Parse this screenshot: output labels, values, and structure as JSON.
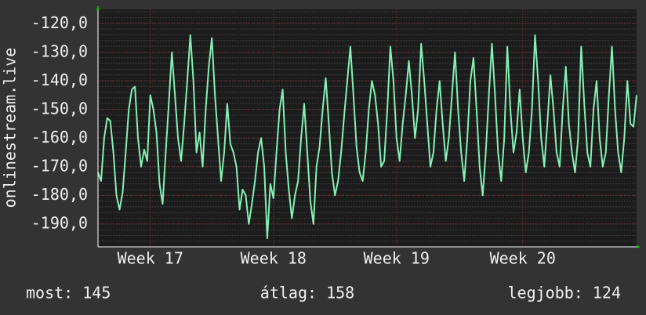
{
  "chart_data": {
    "type": "line",
    "ylabel": "onlinestream.live",
    "series": [
      {
        "name": "onlinestream.live",
        "color": "#86f0b4",
        "values": [
          -172,
          -175,
          -160,
          -153,
          -154,
          -165,
          -180,
          -185,
          -179,
          -165,
          -150,
          -143,
          -142,
          -160,
          -170,
          -164,
          -168,
          -145,
          -150,
          -158,
          -176,
          -183,
          -165,
          -148,
          -130,
          -145,
          -160,
          -168,
          -155,
          -140,
          -124,
          -140,
          -165,
          -158,
          -170,
          -150,
          -135,
          -125,
          -145,
          -160,
          -175,
          -165,
          -148,
          -162,
          -165,
          -170,
          -185,
          -178,
          -180,
          -190,
          -183,
          -175,
          -165,
          -160,
          -170,
          -195,
          -176,
          -181,
          -165,
          -150,
          -143,
          -165,
          -178,
          -188,
          -180,
          -175,
          -160,
          -148,
          -165,
          -182,
          -190,
          -170,
          -163,
          -150,
          -139,
          -155,
          -172,
          -180,
          -175,
          -165,
          -152,
          -140,
          -128,
          -145,
          -163,
          -172,
          -175,
          -165,
          -150,
          -140,
          -145,
          -155,
          -170,
          -168,
          -150,
          -128,
          -140,
          -160,
          -168,
          -155,
          -145,
          -133,
          -145,
          -160,
          -150,
          -127,
          -140,
          -155,
          -170,
          -165,
          -150,
          -140,
          -155,
          -168,
          -160,
          -145,
          -130,
          -150,
          -165,
          -175,
          -160,
          -140,
          -132,
          -150,
          -170,
          -180,
          -165,
          -145,
          -127,
          -145,
          -165,
          -175,
          -160,
          -128,
          -150,
          -165,
          -158,
          -143,
          -160,
          -172,
          -165,
          -150,
          -124,
          -140,
          -160,
          -170,
          -155,
          -138,
          -150,
          -165,
          -170,
          -150,
          -135,
          -155,
          -165,
          -172,
          -160,
          -128,
          -148,
          -165,
          -170,
          -150,
          -140,
          -160,
          -170,
          -165,
          -145,
          -128,
          -150,
          -165,
          -172,
          -160,
          -140,
          -155,
          -156,
          -145
        ]
      }
    ],
    "xlim": [
      0,
      175
    ],
    "xticks": [
      {
        "value": 17,
        "label": "Week 17"
      },
      {
        "value": 57,
        "label": "Week 18"
      },
      {
        "value": 97,
        "label": "Week 19"
      },
      {
        "value": 138,
        "label": "Week 20"
      }
    ],
    "ylim": [
      -198,
      -115
    ],
    "yticks": [
      {
        "value": -120,
        "label": "-120,0"
      },
      {
        "value": -130,
        "label": "-130,0"
      },
      {
        "value": -140,
        "label": "-140,0"
      },
      {
        "value": -150,
        "label": "-150,0"
      },
      {
        "value": -160,
        "label": "-160,0"
      },
      {
        "value": -170,
        "label": "-170,0"
      },
      {
        "value": -180,
        "label": "-180,0"
      },
      {
        "value": -190,
        "label": "-190,0"
      }
    ],
    "grid": true,
    "footer": [
      "most: 145",
      "átlag: 158",
      "legjobb: 124"
    ]
  }
}
